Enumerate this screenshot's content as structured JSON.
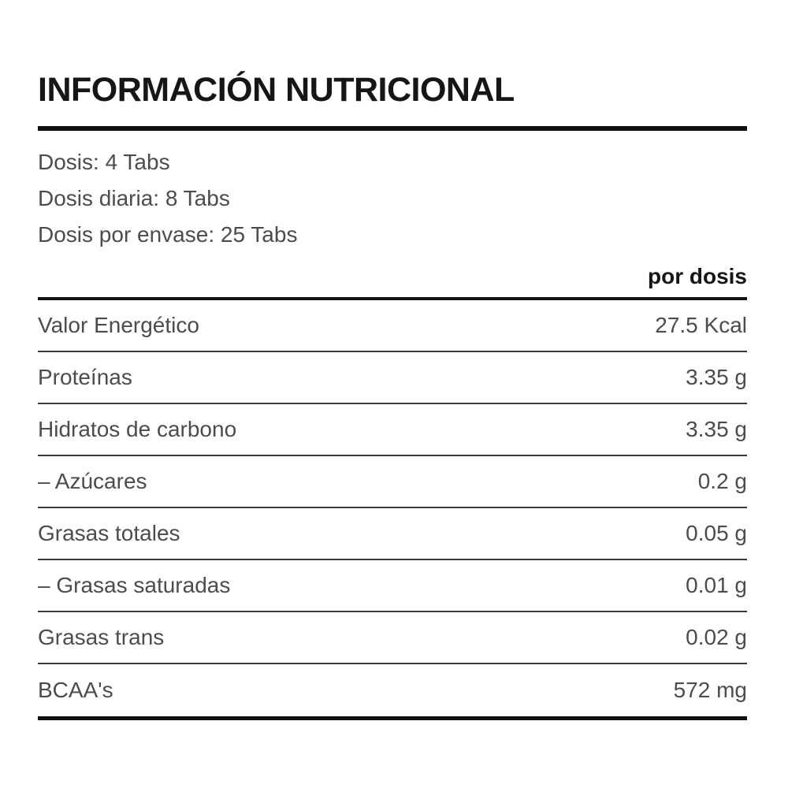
{
  "title": "INFORMACIÓN NUTRICIONAL",
  "serving_info": [
    "Dosis: 4 Tabs",
    "Dosis diaria: 8 Tabs",
    "Dosis por envase: 25 Tabs"
  ],
  "column_header": "por dosis",
  "rows": [
    {
      "label": "Valor Energético",
      "value": "27.5 Kcal"
    },
    {
      "label": "Proteínas",
      "value": "3.35 g"
    },
    {
      "label": "Hidratos de carbono",
      "value": "3.35 g"
    },
    {
      "label": "– Azúcares",
      "value": "0.2 g"
    },
    {
      "label": "Grasas totales",
      "value": "0.05 g"
    },
    {
      "label": "– Grasas saturadas",
      "value": "0.01 g"
    },
    {
      "label": "Grasas trans",
      "value": "0.02 g"
    },
    {
      "label": "BCAA's",
      "value": "572 mg"
    }
  ],
  "colors": {
    "background": "#ffffff",
    "heading_text": "#161616",
    "body_text": "#4c4c4c",
    "rule": "#101010"
  }
}
